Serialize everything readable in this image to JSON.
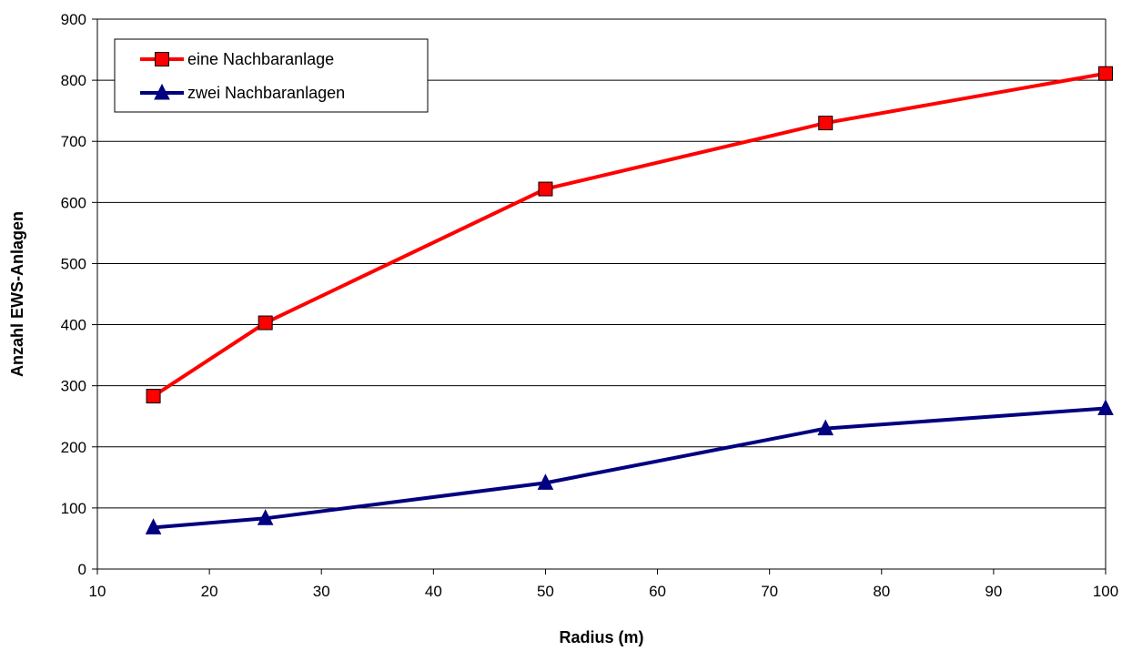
{
  "chart_data": {
    "type": "line",
    "xlabel": "Radius (m)",
    "ylabel": "Anzahl EWS-Anlagen",
    "xlim": [
      10,
      100
    ],
    "ylim": [
      0,
      900
    ],
    "xticks": [
      10,
      20,
      30,
      40,
      50,
      60,
      70,
      80,
      90,
      100
    ],
    "yticks": [
      0,
      100,
      200,
      300,
      400,
      500,
      600,
      700,
      800,
      900
    ],
    "grid": "horizontal",
    "legend_position": "top-left",
    "series": [
      {
        "name": "eine Nachbaranlage",
        "color": "#ff0000",
        "marker": "square",
        "x": [
          15,
          25,
          50,
          75,
          100
        ],
        "y": [
          283,
          403,
          622,
          730,
          811
        ]
      },
      {
        "name": "zwei Nachbaranlagen",
        "color": "#000080",
        "marker": "triangle",
        "x": [
          15,
          25,
          50,
          75,
          100
        ],
        "y": [
          68,
          83,
          141,
          230,
          263
        ]
      }
    ]
  }
}
